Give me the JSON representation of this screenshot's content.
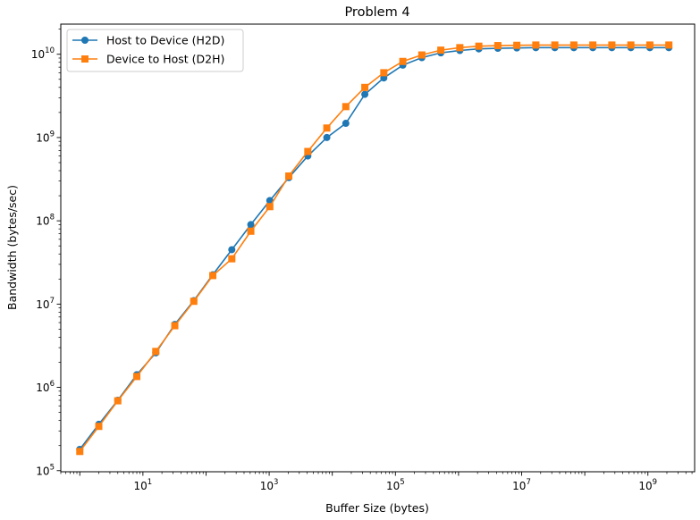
{
  "chart_data": {
    "type": "line",
    "title": "Problem 4",
    "xlabel": "Buffer Size (bytes)",
    "ylabel": "Bandwidth (bytes/sec)",
    "xscale": "log",
    "yscale": "log",
    "xlim": [
      0.5,
      5500000000
    ],
    "ylim": [
      97000,
      23000000000
    ],
    "xticks": [
      {
        "value": 10,
        "base": "10",
        "exp": "1"
      },
      {
        "value": 1000,
        "base": "10",
        "exp": "3"
      },
      {
        "value": 100000,
        "base": "10",
        "exp": "5"
      },
      {
        "value": 10000000,
        "base": "10",
        "exp": "7"
      },
      {
        "value": 1000000000,
        "base": "10",
        "exp": "9"
      }
    ],
    "yticks": [
      {
        "value": 100000,
        "base": "10",
        "exp": "5"
      },
      {
        "value": 1000000,
        "base": "10",
        "exp": "6"
      },
      {
        "value": 10000000,
        "base": "10",
        "exp": "7"
      },
      {
        "value": 100000000,
        "base": "10",
        "exp": "8"
      },
      {
        "value": 1000000000,
        "base": "10",
        "exp": "9"
      },
      {
        "value": 10000000000,
        "base": "10",
        "exp": "10"
      }
    ],
    "grid": false,
    "legend_position": "top-left",
    "x": [
      1,
      2,
      4,
      8,
      16,
      32,
      64,
      128,
      256,
      512,
      1024,
      2048,
      4096,
      8192,
      16384,
      32768,
      65536,
      131072,
      262144,
      524288,
      1048576,
      2097152,
      4194304,
      8388608,
      16777216,
      33554432,
      67108864,
      134217728,
      268435456,
      536870912,
      1073741824,
      2147483648
    ],
    "series": [
      {
        "name": "Host to Device (H2D)",
        "color": "#1f77b4",
        "marker": "circle",
        "values": [
          180000,
          360000,
          700000,
          1420000,
          2600000,
          5700000,
          11000000,
          22500000,
          45000000,
          90000000,
          175000000,
          330000000,
          600000000,
          1000000000,
          1480000000,
          3300000000,
          5200000000,
          7400000000,
          9100000000,
          10400000000,
          11100000000,
          11600000000,
          11800000000,
          11900000000,
          12000000000,
          12000000000,
          12000000000,
          12000000000,
          12000000000,
          12000000000,
          12000000000,
          12000000000
        ]
      },
      {
        "name": "Device to Host (D2H)",
        "color": "#ff7f0e",
        "marker": "square",
        "values": [
          170000,
          340000,
          690000,
          1350000,
          2700000,
          5500000,
          10800000,
          22000000,
          35000000,
          75000000,
          148000000,
          345000000,
          680000000,
          1300000000,
          2350000000,
          4000000000,
          6000000000,
          8200000000,
          9800000000,
          11200000000,
          12000000000,
          12500000000,
          12700000000,
          12800000000,
          12900000000,
          12900000000,
          12900000000,
          12900000000,
          12900000000,
          12900000000,
          12900000000,
          12900000000
        ]
      }
    ]
  }
}
